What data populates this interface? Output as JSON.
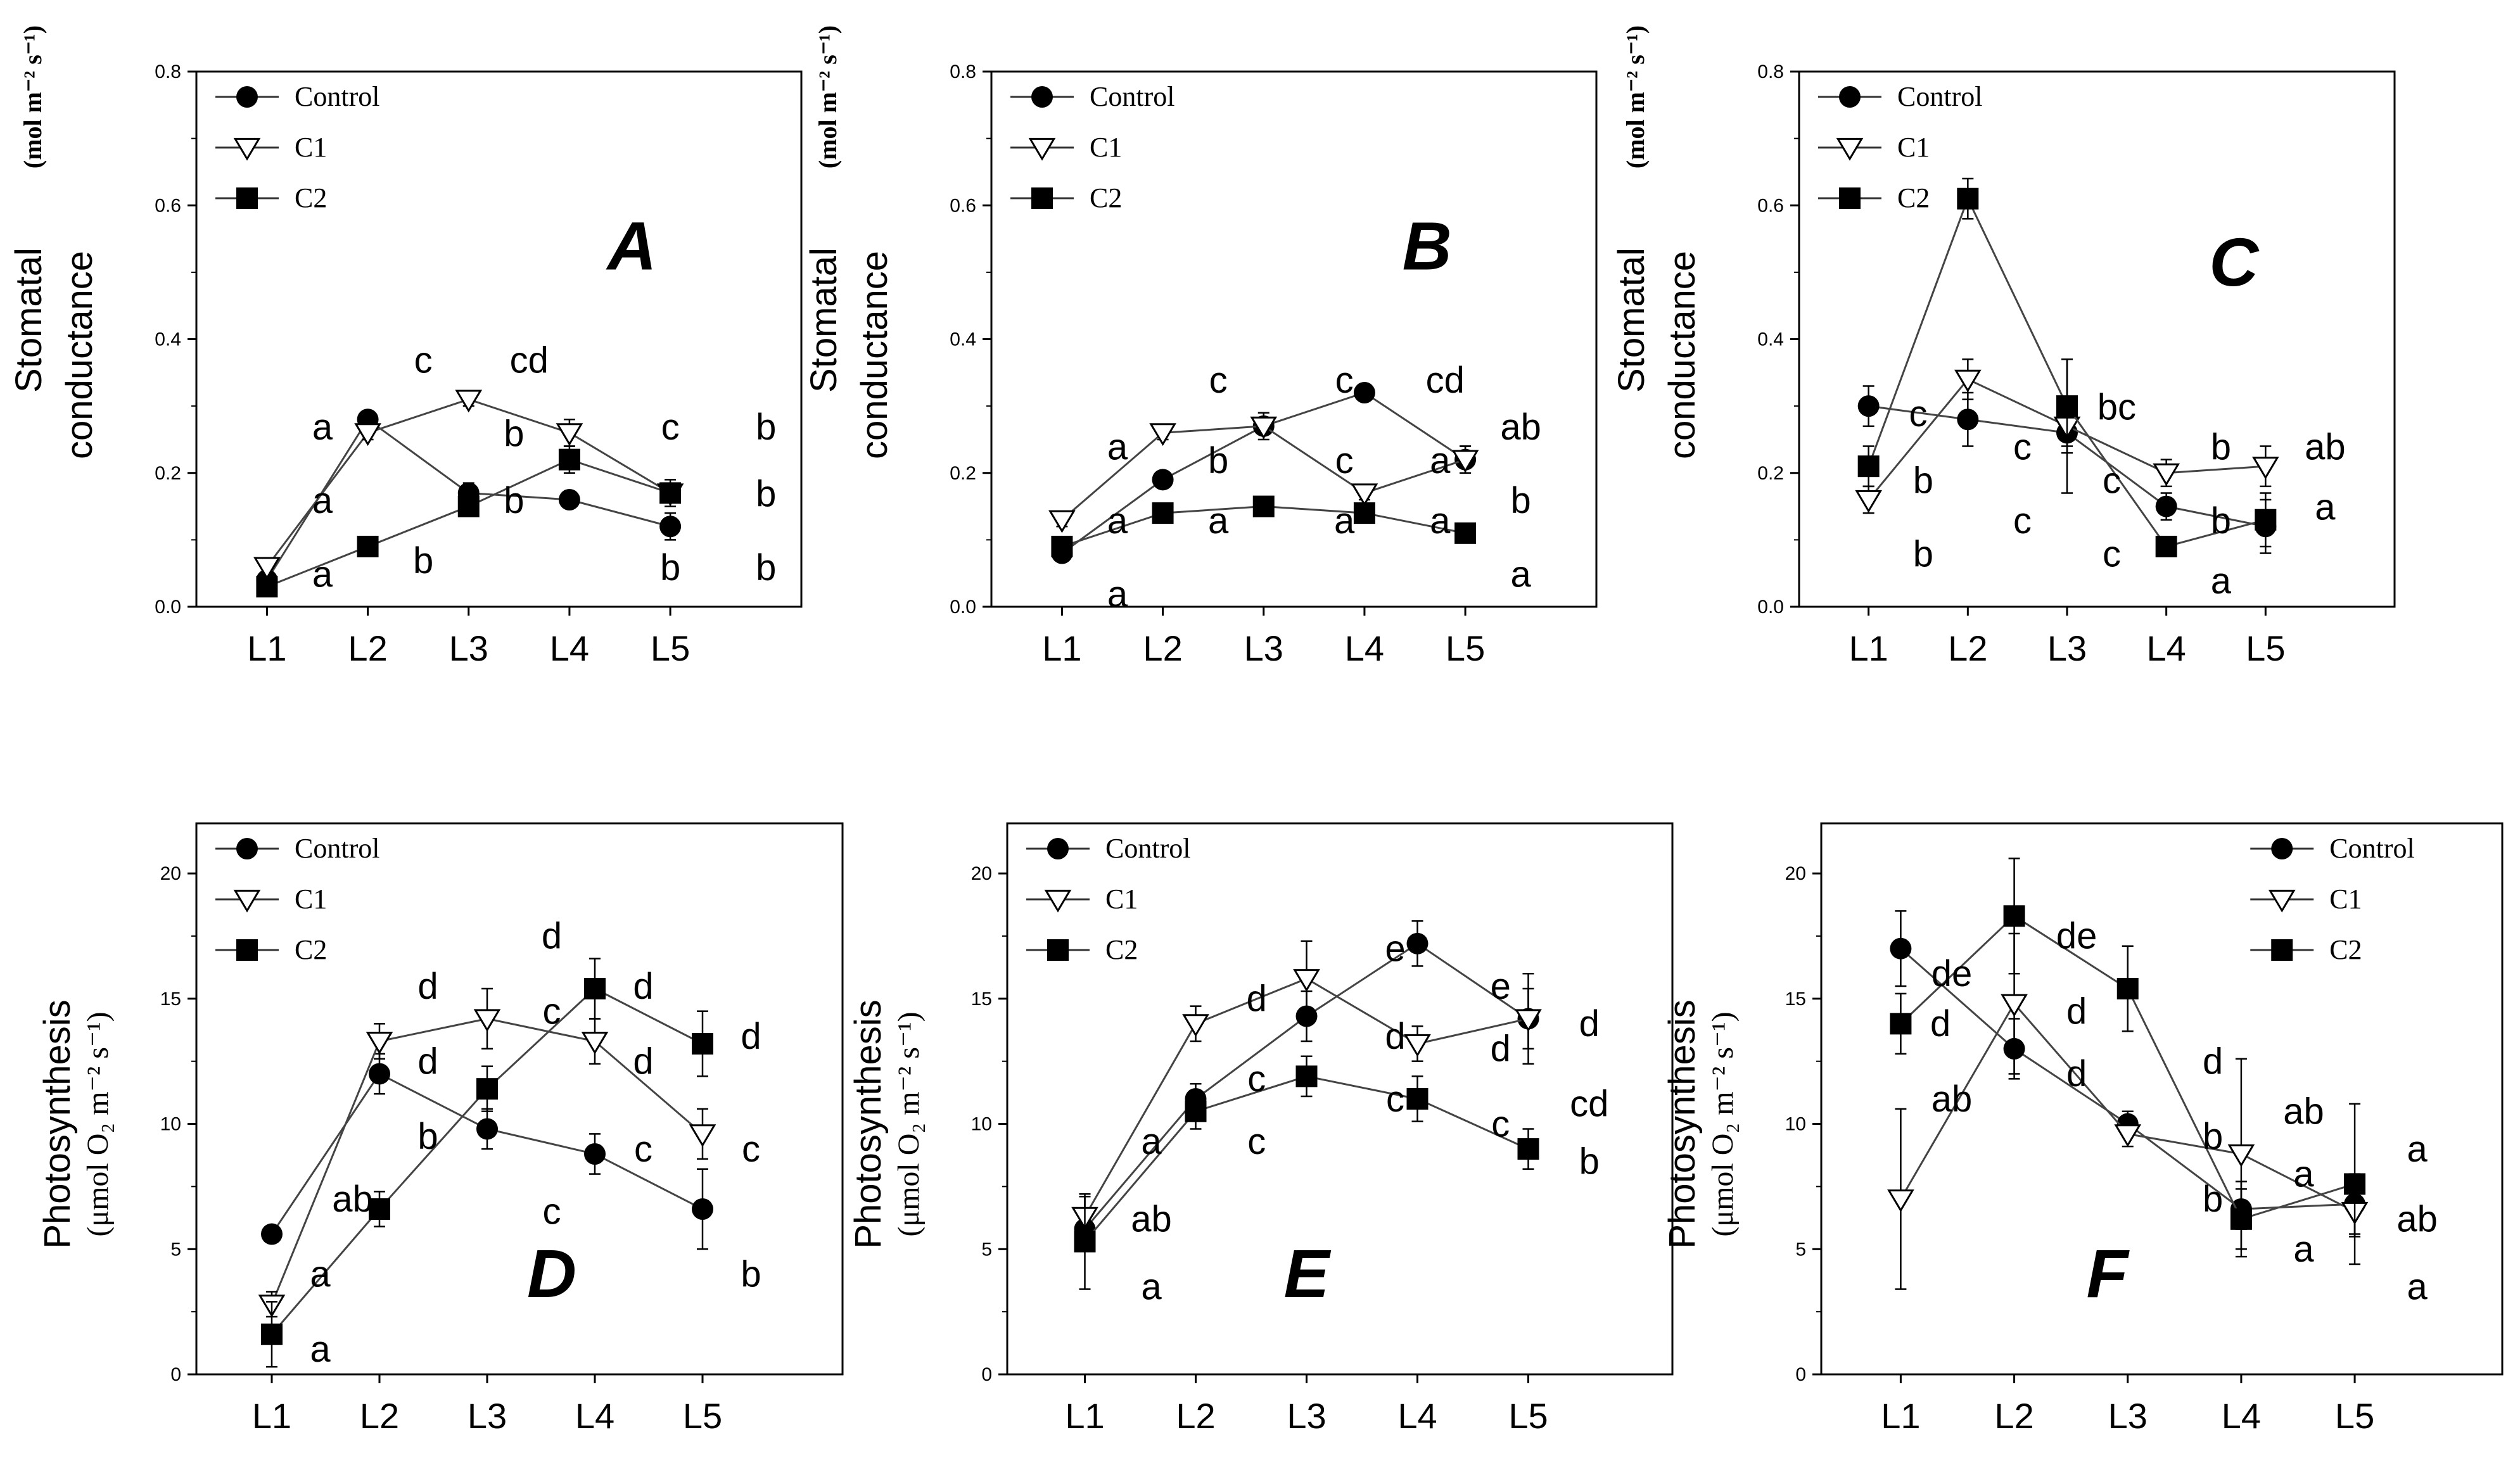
{
  "figure": {
    "description_free": true
  },
  "charts": [
    {
      "id": "A",
      "panel_label": "A",
      "ylabel_main": "conductance",
      "ylabel_top": "Stomatal",
      "yunit": "(mol  m⁻² s⁻¹)",
      "ylim": [
        0,
        0.8
      ],
      "yticks": [
        "0.0",
        "0.2",
        "0.4",
        "0.6",
        "0.8"
      ],
      "categories": [
        "L1",
        "L2",
        "L3",
        "L4",
        "L5"
      ],
      "legend": [
        "Control",
        "C1",
        "C2"
      ],
      "series": [
        {
          "name": "Control",
          "marker": "circle",
          "values": [
            0.04,
            0.28,
            0.17,
            0.16,
            0.12
          ],
          "err": [
            0.01,
            0.01,
            0.015,
            0.01,
            0.02
          ]
        },
        {
          "name": "C1",
          "marker": "triangle",
          "values": [
            0.06,
            0.26,
            0.31,
            0.26,
            0.17
          ],
          "err": [
            0.01,
            0.01,
            0.01,
            0.02,
            0.02
          ]
        },
        {
          "name": "C2",
          "marker": "square",
          "values": [
            0.03,
            0.09,
            0.15,
            0.22,
            0.17
          ],
          "err": [
            0.01,
            0.01,
            0.01,
            0.02,
            0.01
          ]
        }
      ],
      "letters": [
        {
          "t": "a",
          "x": 1.55,
          "y": 0.25
        },
        {
          "t": "c",
          "x": 2.55,
          "y": 0.35
        },
        {
          "t": "cd",
          "x": 3.6,
          "y": 0.35
        },
        {
          "t": "c",
          "x": 5.0,
          "y": 0.25
        },
        {
          "t": "b",
          "x": 5.95,
          "y": 0.25
        },
        {
          "t": "a",
          "x": 1.55,
          "y": 0.14
        },
        {
          "t": "b",
          "x": 3.45,
          "y": 0.24
        },
        {
          "t": "b",
          "x": 3.45,
          "y": 0.14
        },
        {
          "t": "b",
          "x": 5.95,
          "y": 0.15
        },
        {
          "t": "a",
          "x": 1.55,
          "y": 0.03
        },
        {
          "t": "b",
          "x": 2.55,
          "y": 0.05
        },
        {
          "t": "b",
          "x": 5.0,
          "y": 0.04
        },
        {
          "t": "b",
          "x": 5.95,
          "y": 0.04
        }
      ]
    },
    {
      "id": "B",
      "panel_label": "B",
      "ylabel_main": "conductance",
      "ylabel_top": "Stomatal",
      "yunit": "(mol  m⁻² s⁻¹)",
      "ylim": [
        0,
        0.8
      ],
      "yticks": [
        "0.0",
        "0.2",
        "0.4",
        "0.6",
        "0.8"
      ],
      "categories": [
        "L1",
        "L2",
        "L3",
        "L4",
        "L5"
      ],
      "legend": [
        "Control",
        "C1",
        "C2"
      ],
      "series": [
        {
          "name": "Control",
          "marker": "circle",
          "values": [
            0.08,
            0.19,
            0.27,
            0.32,
            0.22
          ],
          "err": [
            0.01,
            0.01,
            0.01,
            0.01,
            0.02
          ]
        },
        {
          "name": "C1",
          "marker": "triangle",
          "values": [
            0.13,
            0.26,
            0.27,
            0.17,
            0.22
          ],
          "err": [
            0.01,
            0.01,
            0.02,
            0.01,
            0.02
          ]
        },
        {
          "name": "C2",
          "marker": "square",
          "values": [
            0.09,
            0.14,
            0.15,
            0.14,
            0.11
          ],
          "err": [
            0.01,
            0.01,
            0.01,
            0.01,
            0.01
          ]
        }
      ],
      "letters": [
        {
          "t": "c",
          "x": 2.55,
          "y": 0.32
        },
        {
          "t": "c",
          "x": 3.8,
          "y": 0.32
        },
        {
          "t": "cd",
          "x": 4.8,
          "y": 0.32
        },
        {
          "t": "ab",
          "x": 5.55,
          "y": 0.25
        },
        {
          "t": "a",
          "x": 1.55,
          "y": 0.22
        },
        {
          "t": "b",
          "x": 2.55,
          "y": 0.2
        },
        {
          "t": "c",
          "x": 3.8,
          "y": 0.2
        },
        {
          "t": "a",
          "x": 4.75,
          "y": 0.2
        },
        {
          "t": "b",
          "x": 5.55,
          "y": 0.14
        },
        {
          "t": "a",
          "x": 1.55,
          "y": 0.11
        },
        {
          "t": "a",
          "x": 2.55,
          "y": 0.11
        },
        {
          "t": "a",
          "x": 3.8,
          "y": 0.11
        },
        {
          "t": "a",
          "x": 4.75,
          "y": 0.11
        },
        {
          "t": "a",
          "x": 1.55,
          "y": 0.0
        },
        {
          "t": "a",
          "x": 5.55,
          "y": 0.03
        }
      ]
    },
    {
      "id": "C",
      "panel_label": "C",
      "ylabel_main": "conductance",
      "ylabel_top": "Stomatal",
      "yunit": "(mol  m⁻² s⁻¹)",
      "ylim": [
        0,
        0.8
      ],
      "yticks": [
        "0.0",
        "0.2",
        "0.4",
        "0.6",
        "0.8"
      ],
      "categories": [
        "L1",
        "L2",
        "L3",
        "L4",
        "L5"
      ],
      "legend": [
        "Control",
        "C1",
        "C2"
      ],
      "series": [
        {
          "name": "Control",
          "marker": "circle",
          "values": [
            0.3,
            0.28,
            0.26,
            0.15,
            0.12
          ],
          "err": [
            0.03,
            0.04,
            0.02,
            0.02,
            0.04
          ]
        },
        {
          "name": "C1",
          "marker": "triangle",
          "values": [
            0.16,
            0.34,
            0.27,
            0.2,
            0.21
          ],
          "err": [
            0.02,
            0.03,
            0.1,
            0.02,
            0.03
          ]
        },
        {
          "name": "C2",
          "marker": "square",
          "values": [
            0.21,
            0.61,
            0.3,
            0.09,
            0.13
          ],
          "err": [
            0.03,
            0.03,
            0.07,
            0.01,
            0.04
          ]
        }
      ],
      "letters": [
        {
          "t": "c",
          "x": 1.5,
          "y": 0.27
        },
        {
          "t": "bc",
          "x": 3.5,
          "y": 0.28
        },
        {
          "t": "b",
          "x": 4.55,
          "y": 0.22
        },
        {
          "t": "ab",
          "x": 5.6,
          "y": 0.22
        },
        {
          "t": "b",
          "x": 1.55,
          "y": 0.17
        },
        {
          "t": "c",
          "x": 2.55,
          "y": 0.22
        },
        {
          "t": "c",
          "x": 3.45,
          "y": 0.17
        },
        {
          "t": "b",
          "x": 4.55,
          "y": 0.11
        },
        {
          "t": "a",
          "x": 5.6,
          "y": 0.13
        },
        {
          "t": "b",
          "x": 1.55,
          "y": 0.06
        },
        {
          "t": "c",
          "x": 2.55,
          "y": 0.11
        },
        {
          "t": "c",
          "x": 3.45,
          "y": 0.06
        },
        {
          "t": "a",
          "x": 4.55,
          "y": 0.02
        }
      ]
    },
    {
      "id": "D",
      "panel_label": "D",
      "ylabel_main": "Photosynthesis",
      "yunit": "(μmol O₂ m⁻² s⁻¹)",
      "ylim": [
        0,
        22
      ],
      "yticks": [
        "0",
        "5",
        "10",
        "15",
        "20"
      ],
      "categories": [
        "L1",
        "L2",
        "L3",
        "L4",
        "L5"
      ],
      "legend": [
        "Control",
        "C1",
        "C2"
      ],
      "series": [
        {
          "name": "Control",
          "marker": "circle",
          "values": [
            5.6,
            12.0,
            9.8,
            8.8,
            6.6
          ],
          "err": [
            0.3,
            0.8,
            0.8,
            0.8,
            1.6
          ]
        },
        {
          "name": "C1",
          "marker": "triangle",
          "values": [
            2.8,
            13.3,
            14.2,
            13.3,
            9.6
          ],
          "err": [
            0.5,
            0.7,
            1.2,
            0.9,
            1.0
          ]
        },
        {
          "name": "C2",
          "marker": "square",
          "values": [
            1.6,
            6.6,
            11.4,
            15.4,
            13.2
          ],
          "err": [
            1.3,
            0.7,
            0.9,
            1.2,
            1.3
          ]
        }
      ],
      "letters": [
        {
          "t": "d",
          "x": 2.45,
          "y": 15.0
        },
        {
          "t": "d",
          "x": 3.6,
          "y": 17.0
        },
        {
          "t": "d",
          "x": 4.45,
          "y": 15.0
        },
        {
          "t": "d",
          "x": 5.45,
          "y": 13.0
        },
        {
          "t": "d",
          "x": 2.45,
          "y": 12.0
        },
        {
          "t": "c",
          "x": 3.6,
          "y": 14.0
        },
        {
          "t": "d",
          "x": 4.45,
          "y": 12.0
        },
        {
          "t": "ab",
          "x": 1.75,
          "y": 6.5
        },
        {
          "t": "b",
          "x": 2.45,
          "y": 9.0
        },
        {
          "t": "c",
          "x": 4.45,
          "y": 8.5
        },
        {
          "t": "c",
          "x": 5.45,
          "y": 8.5
        },
        {
          "t": "c",
          "x": 3.6,
          "y": 6.0
        },
        {
          "t": "a",
          "x": 1.45,
          "y": 3.5
        },
        {
          "t": "b",
          "x": 5.45,
          "y": 3.5
        },
        {
          "t": "a",
          "x": 1.45,
          "y": 0.5
        }
      ]
    },
    {
      "id": "E",
      "panel_label": "E",
      "ylabel_main": "Photosynthesis",
      "yunit": "(μmol O₂ m⁻² s⁻¹)",
      "ylim": [
        0,
        22
      ],
      "yticks": [
        "0",
        "5",
        "10",
        "15",
        "20"
      ],
      "categories": [
        "L1",
        "L2",
        "L3",
        "L4",
        "L5"
      ],
      "legend": [
        "Control",
        "C1",
        "C2"
      ],
      "series": [
        {
          "name": "Control",
          "marker": "circle",
          "values": [
            5.8,
            11.0,
            14.3,
            17.2,
            14.2
          ],
          "err": [
            0.8,
            0.6,
            1.0,
            0.9,
            1.2
          ]
        },
        {
          "name": "C1",
          "marker": "triangle",
          "values": [
            6.3,
            14.0,
            15.8,
            13.2,
            14.2
          ],
          "err": [
            0.8,
            0.7,
            1.5,
            0.7,
            1.8
          ]
        },
        {
          "name": "C2",
          "marker": "square",
          "values": [
            5.3,
            10.5,
            11.9,
            11.0,
            9.0
          ],
          "err": [
            1.9,
            0.7,
            0.8,
            0.9,
            0.8
          ]
        }
      ],
      "letters": [
        {
          "t": "d",
          "x": 2.55,
          "y": 14.5
        },
        {
          "t": "e",
          "x": 3.8,
          "y": 16.5
        },
        {
          "t": "e",
          "x": 4.75,
          "y": 15.0
        },
        {
          "t": "d",
          "x": 5.55,
          "y": 13.5
        },
        {
          "t": "c",
          "x": 2.55,
          "y": 11.3
        },
        {
          "t": "d",
          "x": 3.8,
          "y": 13.0
        },
        {
          "t": "d",
          "x": 4.75,
          "y": 12.5
        },
        {
          "t": "cd",
          "x": 5.55,
          "y": 10.3
        },
        {
          "t": "a",
          "x": 1.6,
          "y": 8.8
        },
        {
          "t": "c",
          "x": 2.55,
          "y": 8.8
        },
        {
          "t": "c",
          "x": 3.8,
          "y": 10.5
        },
        {
          "t": "c",
          "x": 4.75,
          "y": 9.5
        },
        {
          "t": "b",
          "x": 5.55,
          "y": 8.0
        },
        {
          "t": "ab",
          "x": 1.6,
          "y": 5.7
        },
        {
          "t": "a",
          "x": 1.6,
          "y": 3.0
        }
      ]
    },
    {
      "id": "F",
      "panel_label": "F",
      "ylabel_main": "Photosynthesis",
      "yunit": "(μmol O₂ m⁻² s⁻¹)",
      "ylim": [
        0,
        22
      ],
      "yticks": [
        "0",
        "5",
        "10",
        "15",
        "20"
      ],
      "categories": [
        "L1",
        "L2",
        "L3",
        "L4",
        "L5"
      ],
      "legend": [
        "Control",
        "C1",
        "C2"
      ],
      "series": [
        {
          "name": "Control",
          "marker": "circle",
          "values": [
            17.0,
            13.0,
            10.0,
            6.6,
            6.8
          ],
          "err": [
            1.5,
            1.2,
            0.5,
            0.8,
            1.2
          ]
        },
        {
          "name": "C1",
          "marker": "triangle",
          "values": [
            7.0,
            14.8,
            9.6,
            8.8,
            6.5
          ],
          "err": [
            3.6,
            2.8,
            0.5,
            3.8,
            1.0
          ]
        },
        {
          "name": "C2",
          "marker": "square",
          "values": [
            14.0,
            18.3,
            15.4,
            6.2,
            7.6
          ],
          "err": [
            1.2,
            2.3,
            1.7,
            1.5,
            3.2
          ]
        }
      ],
      "letters": [
        {
          "t": "de",
          "x": 1.45,
          "y": 15.5
        },
        {
          "t": "de",
          "x": 2.55,
          "y": 17.0
        },
        {
          "t": "d",
          "x": 1.35,
          "y": 13.5
        },
        {
          "t": "d",
          "x": 2.55,
          "y": 14.0
        },
        {
          "t": "d",
          "x": 2.55,
          "y": 11.5
        },
        {
          "t": "d",
          "x": 3.75,
          "y": 12.0
        },
        {
          "t": "ab",
          "x": 1.45,
          "y": 10.5
        },
        {
          "t": "b",
          "x": 3.75,
          "y": 9.0
        },
        {
          "t": "ab",
          "x": 4.55,
          "y": 10.0
        },
        {
          "t": "a",
          "x": 5.55,
          "y": 8.5
        },
        {
          "t": "b",
          "x": 3.75,
          "y": 6.5
        },
        {
          "t": "a",
          "x": 4.55,
          "y": 7.5
        },
        {
          "t": "ab",
          "x": 5.55,
          "y": 5.7
        },
        {
          "t": "a",
          "x": 4.55,
          "y": 4.5
        },
        {
          "t": "a",
          "x": 5.55,
          "y": 3.0
        }
      ]
    }
  ]
}
